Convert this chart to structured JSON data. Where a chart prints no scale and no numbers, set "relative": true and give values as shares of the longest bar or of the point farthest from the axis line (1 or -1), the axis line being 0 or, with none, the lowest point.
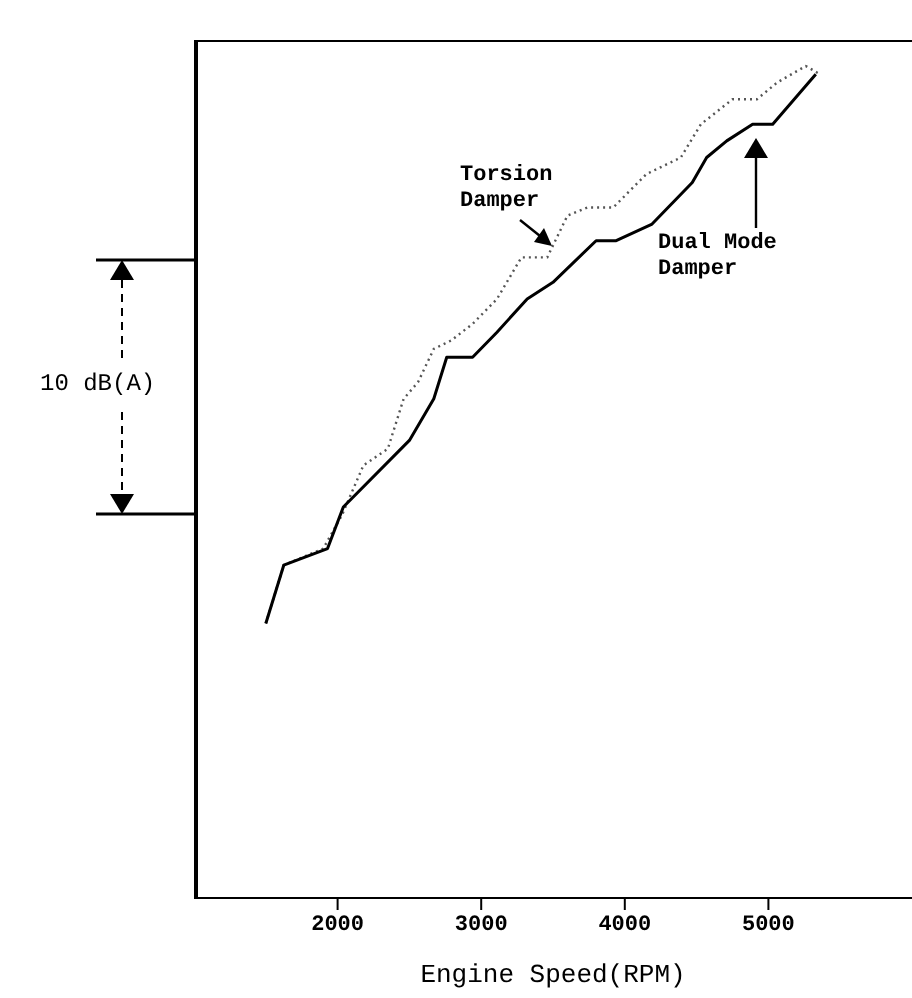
{
  "chart_data": {
    "type": "line",
    "relative": true,
    "xlabel": "Engine Speed(RPM)",
    "xlim": [
      1000,
      6000
    ],
    "xticks": [
      2000,
      3000,
      4000,
      5000
    ],
    "marker": "none",
    "annotations": [
      "10 dB(A)"
    ],
    "series": [
      {
        "name": "Torsion Damper",
        "color": "#555555",
        "line_style": "dotted",
        "x": [
          1500,
          1625,
          1900,
          2030,
          2180,
          2350,
          2460,
          2560,
          2670,
          2790,
          2940,
          3110,
          3280,
          3460,
          3600,
          3740,
          3920,
          4150,
          4390,
          4530,
          4750,
          4820,
          4920,
          5060,
          5260,
          5360
        ],
        "values": [
          0.33,
          0.4,
          0.42,
          0.46,
          0.52,
          0.54,
          0.6,
          0.62,
          0.66,
          0.67,
          0.69,
          0.72,
          0.77,
          0.77,
          0.82,
          0.83,
          0.83,
          0.87,
          0.89,
          0.93,
          0.96,
          0.96,
          0.96,
          0.98,
          1,
          0.99
        ]
      },
      {
        "name": "Dual Mode Damper",
        "color": "#000000",
        "line_style": "solid",
        "x": [
          1500,
          1625,
          1930,
          2040,
          2500,
          2670,
          2760,
          2940,
          3110,
          3320,
          3500,
          3800,
          3940,
          4190,
          4470,
          4570,
          4710,
          4890,
          5030,
          5330
        ],
        "values": [
          0.33,
          0.4,
          0.42,
          0.47,
          0.55,
          0.6,
          0.65,
          0.65,
          0.68,
          0.72,
          0.74,
          0.79,
          0.79,
          0.81,
          0.86,
          0.89,
          0.91,
          0.93,
          0.93,
          0.99
        ]
      }
    ]
  }
}
